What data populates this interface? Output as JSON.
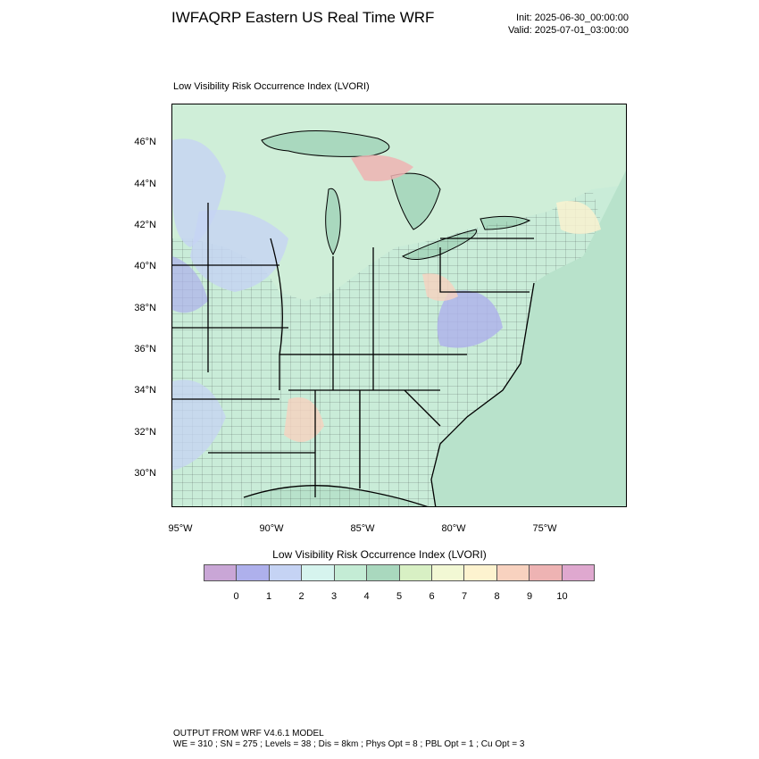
{
  "header": {
    "title": "IWFAQRP Eastern US Real Time WRF",
    "init": "Init: 2025-06-30_00:00:00",
    "valid": "Valid: 2025-07-01_03:00:00"
  },
  "panel_title": "Low Visibility Risk Occurrence Index   (LVORI)",
  "map": {
    "lat_labels": [
      "46°N",
      "44°N",
      "42°N",
      "40°N",
      "38°N",
      "36°N",
      "34°N",
      "32°N",
      "30°N"
    ],
    "lon_labels": [
      "95°W",
      "90°W",
      "85°W",
      "80°W",
      "75°W"
    ],
    "land_color": "#c9ecd8",
    "water_color": "#a9d8be"
  },
  "colorbar": {
    "title": "Low Visibility Risk Occurrence Index  (LVORI)",
    "colors": [
      "#c9a6d6",
      "#aeb0ec",
      "#c5d3f4",
      "#d6f4ee",
      "#c4ecd5",
      "#a9d8be",
      "#d8f0c4",
      "#f2f8d4",
      "#fdf3cf",
      "#f8d2bf",
      "#eeb3b3",
      "#dfa8cf"
    ],
    "labels": [
      "0",
      "1",
      "2",
      "3",
      "4",
      "5",
      "6",
      "7",
      "8",
      "9",
      "10"
    ]
  },
  "footer": {
    "line1": "OUTPUT FROM WRF V4.6.1 MODEL",
    "line2": "WE = 310 ; SN = 275 ; Levels = 38 ; Dis = 8km ; Phys Opt = 8 ; PBL Opt = 1 ; Cu Opt = 3"
  }
}
